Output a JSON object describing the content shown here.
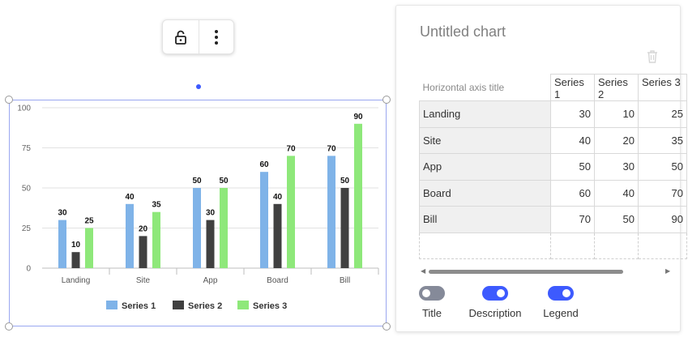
{
  "toolbar": {
    "lock_icon": "unlock-icon",
    "menu_icon": "kebab-menu-icon"
  },
  "chart_data": {
    "type": "bar",
    "categories": [
      "Landing",
      "Site",
      "App",
      "Board",
      "Bill"
    ],
    "series": [
      {
        "name": "Series 1",
        "values": [
          30,
          40,
          50,
          60,
          70
        ],
        "color": "#7fb3e8"
      },
      {
        "name": "Series 2",
        "values": [
          10,
          20,
          30,
          40,
          50
        ],
        "color": "#404040"
      },
      {
        "name": "Series 3",
        "values": [
          25,
          35,
          50,
          70,
          90
        ],
        "color": "#8ee87a"
      }
    ],
    "ylim": [
      0,
      100
    ],
    "yticks": [
      "0",
      "25",
      "50",
      "75",
      "100"
    ],
    "grid": true,
    "legend": "bottom",
    "data_labels": true
  },
  "panel": {
    "title": "Untitled chart",
    "axis_title_placeholder": "Horizontal axis title",
    "series_headers": [
      "Series 1",
      "Series 2",
      "Series 3"
    ],
    "rows": [
      {
        "label": "Landing",
        "values": [
          "30",
          "10",
          "25"
        ]
      },
      {
        "label": "Site",
        "values": [
          "40",
          "20",
          "35"
        ]
      },
      {
        "label": "App",
        "values": [
          "50",
          "30",
          "50"
        ]
      },
      {
        "label": "Board",
        "values": [
          "60",
          "40",
          "70"
        ]
      },
      {
        "label": "Bill",
        "values": [
          "70",
          "50",
          "90"
        ]
      }
    ],
    "toggles": [
      {
        "label": "Title",
        "on": false
      },
      {
        "label": "Description",
        "on": true
      },
      {
        "label": "Legend",
        "on": true
      }
    ]
  },
  "colors": {
    "accent": "#3d5afe",
    "selection": "#9aa7f0"
  }
}
